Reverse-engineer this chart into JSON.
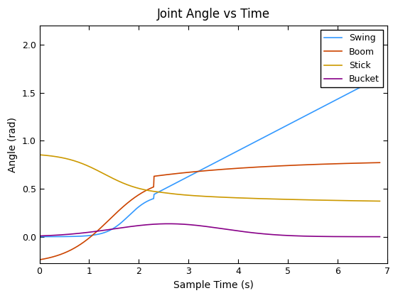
{
  "title": "Joint Angle vs Time",
  "xlabel": "Sample Time (s)",
  "ylabel": "Angle (rad)",
  "xlim": [
    0,
    7
  ],
  "ylim": [
    -0.28,
    2.2
  ],
  "legend_labels": [
    "Swing",
    "Boom",
    "Stick",
    "Bucket"
  ],
  "line_colors": [
    "#3399FF",
    "#CC4400",
    "#CC9900",
    "#880088"
  ],
  "background_color": "#ffffff",
  "title_fontsize": 12,
  "label_fontsize": 10,
  "yticks": [
    0.0,
    0.5,
    1.0,
    1.5,
    2.0
  ],
  "xticks": [
    0,
    1,
    2,
    3,
    4,
    5,
    6,
    7
  ]
}
